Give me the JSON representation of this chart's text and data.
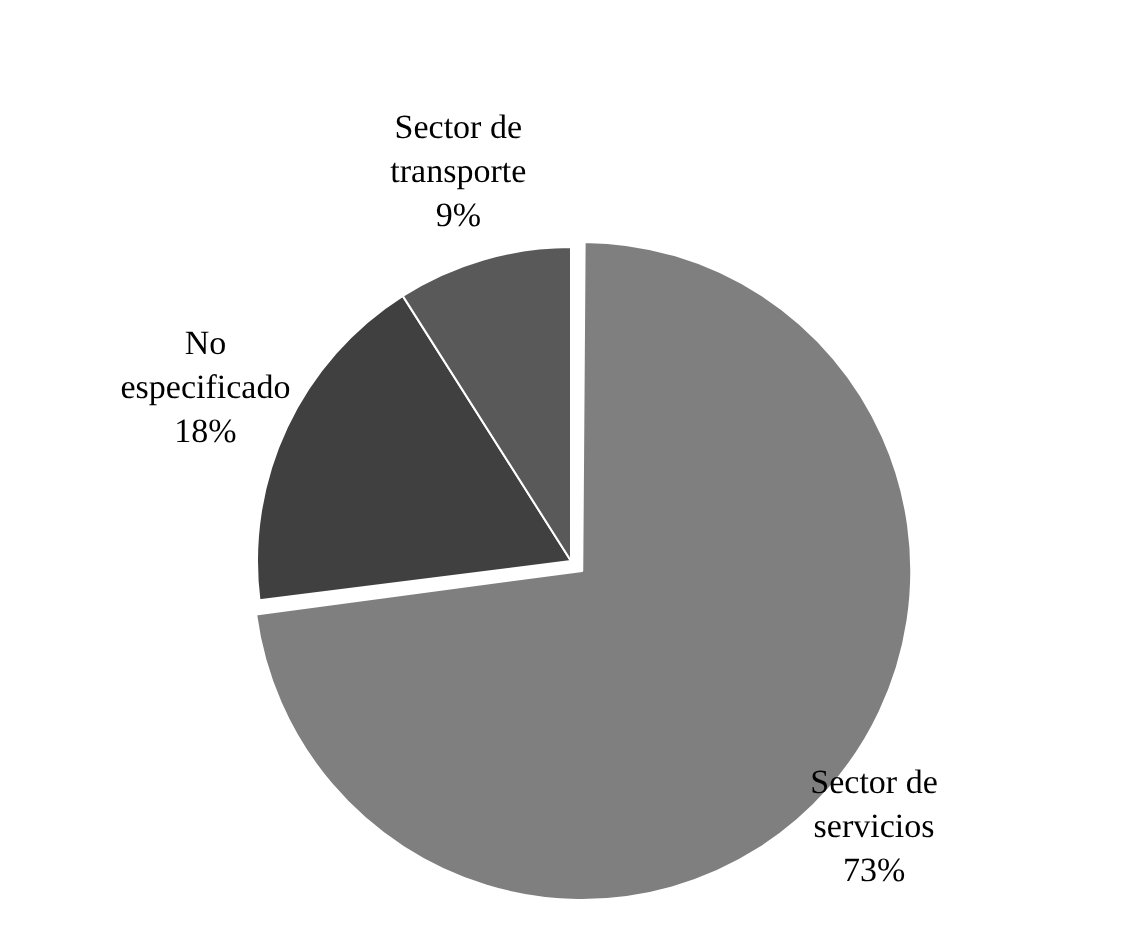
{
  "chart_data": {
    "type": "pie",
    "categories": [
      "Sector de servicios",
      "No especificado",
      "Sector de transporte"
    ],
    "values": [
      73,
      18,
      9
    ],
    "colors": [
      "#7f7f7f",
      "#404040",
      "#595959"
    ],
    "value_labels": [
      "73%",
      "18%",
      "9%"
    ],
    "legend": false
  }
}
